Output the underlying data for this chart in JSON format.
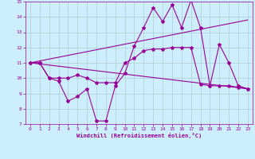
{
  "background_color": "#cceeff",
  "grid_color": "#aaddcc",
  "line_color": "#990099",
  "xlabel": "Windchill (Refroidissement éolien,°C)",
  "xlim": [
    -0.5,
    23.5
  ],
  "ylim": [
    7,
    15
  ],
  "yticks": [
    7,
    8,
    9,
    10,
    11,
    12,
    13,
    14,
    15
  ],
  "xticks": [
    0,
    1,
    2,
    3,
    4,
    5,
    6,
    7,
    8,
    9,
    10,
    11,
    12,
    13,
    14,
    15,
    16,
    17,
    18,
    19,
    20,
    21,
    22,
    23
  ],
  "series0_x": [
    0,
    1,
    2,
    3,
    4,
    5,
    6,
    7,
    8,
    9,
    10,
    11,
    12,
    13,
    14,
    15,
    16,
    17,
    18,
    19,
    20,
    21,
    22,
    23
  ],
  "series0_y": [
    11,
    11,
    10,
    9.8,
    8.5,
    8.8,
    9.3,
    7.2,
    7.2,
    9.5,
    10.3,
    12.1,
    13.3,
    14.6,
    13.7,
    14.8,
    13.3,
    15.1,
    13.3,
    9.5,
    12.2,
    11.0,
    9.5,
    9.3
  ],
  "series1_x": [
    0,
    1,
    2,
    3,
    4,
    5,
    6,
    7,
    8,
    9,
    10,
    11,
    12,
    13,
    14,
    15,
    16,
    17,
    18,
    19,
    20,
    21,
    22,
    23
  ],
  "series1_y": [
    11,
    11,
    10,
    10,
    10,
    10.2,
    10.0,
    9.7,
    9.7,
    9.7,
    11.0,
    11.3,
    11.8,
    11.9,
    11.9,
    12.0,
    12.0,
    12.0,
    9.6,
    9.5,
    9.5,
    9.5,
    9.4,
    9.3
  ],
  "line2_x": [
    0,
    23
  ],
  "line2_y": [
    11,
    9.3
  ],
  "line3_x": [
    0,
    23
  ],
  "line3_y": [
    11,
    13.8
  ]
}
